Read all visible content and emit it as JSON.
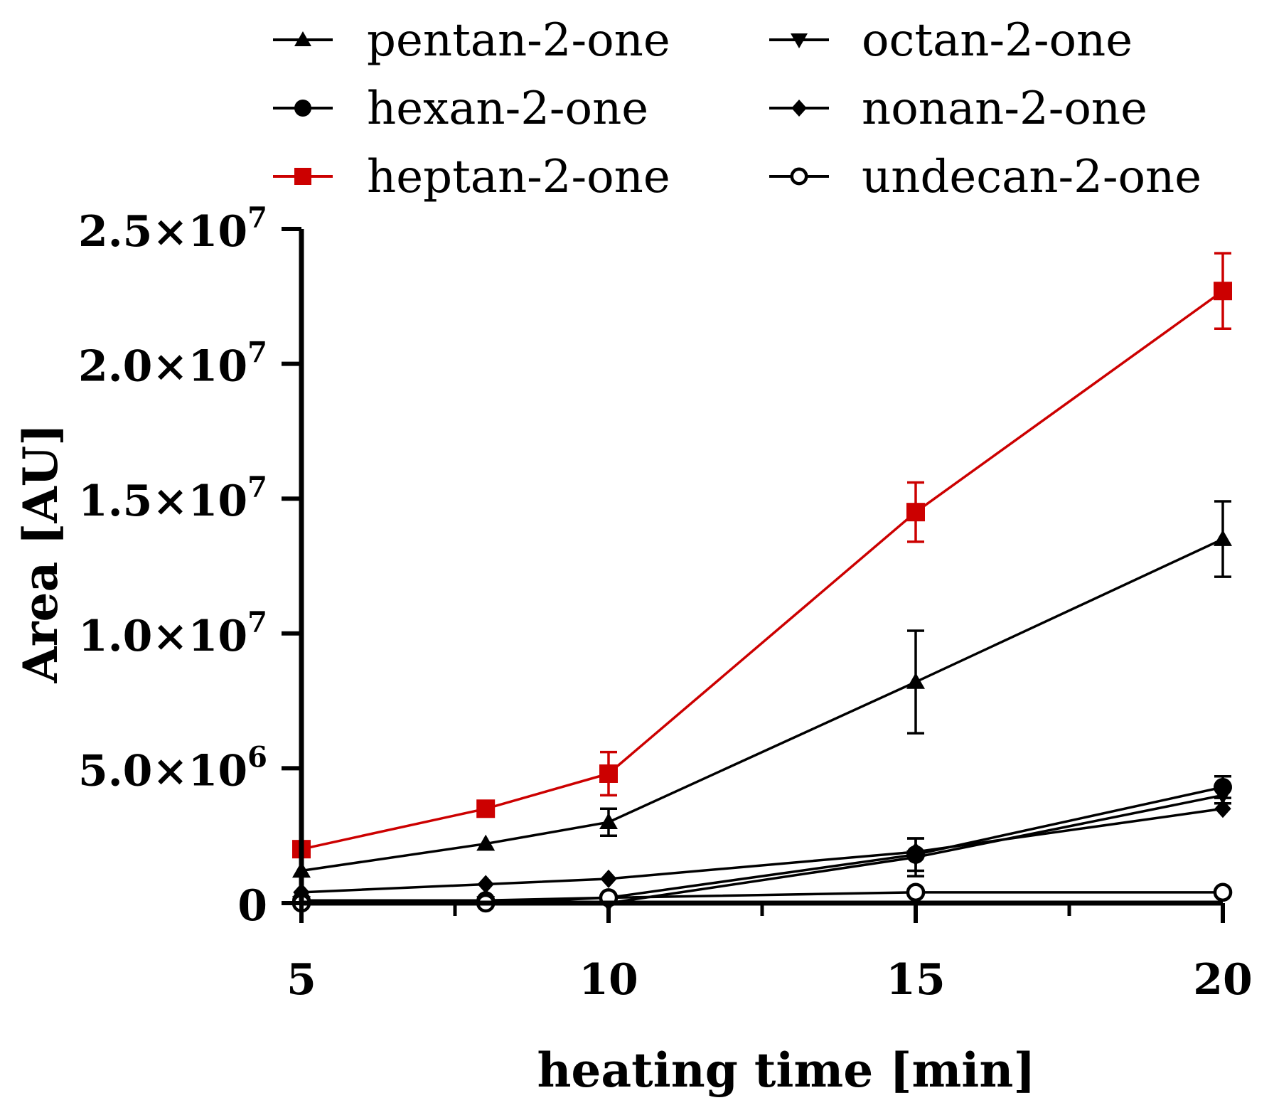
{
  "chart_data": {
    "type": "line",
    "title": "",
    "xlabel": "heating time [min]",
    "ylabel": "Area [AU]",
    "xlim": [
      5,
      20
    ],
    "ylim": [
      0,
      25000000
    ],
    "x_ticks": [
      5,
      10,
      15,
      20
    ],
    "x_minor_ticks": [
      7.5,
      12.5,
      17.5
    ],
    "y_ticks": [
      {
        "value": 0,
        "mantissa": "0",
        "exponent": ""
      },
      {
        "value": 5000000,
        "mantissa": "5.0×10",
        "exponent": "6"
      },
      {
        "value": 10000000,
        "mantissa": "1.0×10",
        "exponent": "7"
      },
      {
        "value": 15000000,
        "mantissa": "1.5×10",
        "exponent": "7"
      },
      {
        "value": 20000000,
        "mantissa": "2.0×10",
        "exponent": "7"
      },
      {
        "value": 25000000,
        "mantissa": "2.5×10",
        "exponent": "7"
      }
    ],
    "grid": false,
    "legend_position": "top",
    "series": [
      {
        "name": "pentan-2-one",
        "marker": "triangle-up",
        "color": "#000000",
        "x": [
          5,
          8,
          10,
          15,
          20
        ],
        "values": [
          1200000,
          2200000,
          3000000,
          8200000,
          13500000
        ],
        "errors": [
          0,
          0,
          500000,
          1900000,
          1400000
        ]
      },
      {
        "name": "hexan-2-one",
        "marker": "circle",
        "color": "#000000",
        "x": [
          5,
          8,
          10,
          15,
          20
        ],
        "values": [
          100000,
          100000,
          200000,
          1800000,
          4300000
        ],
        "errors": [
          0,
          0,
          0,
          600000,
          400000
        ]
      },
      {
        "name": "heptan-2-one",
        "marker": "square",
        "color": "#cc0000",
        "x": [
          5,
          8,
          10,
          15,
          20
        ],
        "values": [
          2000000,
          3500000,
          4800000,
          14500000,
          22700000
        ],
        "errors": [
          0,
          0,
          800000,
          1100000,
          1400000
        ]
      },
      {
        "name": "octan-2-one",
        "marker": "triangle-down",
        "color": "#000000",
        "x": [
          5,
          8,
          10,
          15,
          20
        ],
        "values": [
          0,
          0,
          0,
          1700000,
          4000000
        ],
        "errors": [
          0,
          0,
          0,
          700000,
          300000
        ]
      },
      {
        "name": "nonan-2-one",
        "marker": "diamond",
        "color": "#000000",
        "x": [
          5,
          8,
          10,
          15,
          20
        ],
        "values": [
          400000,
          700000,
          900000,
          1900000,
          3500000
        ],
        "errors": [
          0,
          0,
          0,
          0,
          0
        ]
      },
      {
        "name": "undecan-2-one",
        "marker": "circle-open",
        "color": "#000000",
        "x": [
          5,
          8,
          10,
          15,
          20
        ],
        "values": [
          0,
          0,
          200000,
          400000,
          400000
        ],
        "errors": [
          0,
          0,
          0,
          0,
          0
        ]
      }
    ]
  }
}
